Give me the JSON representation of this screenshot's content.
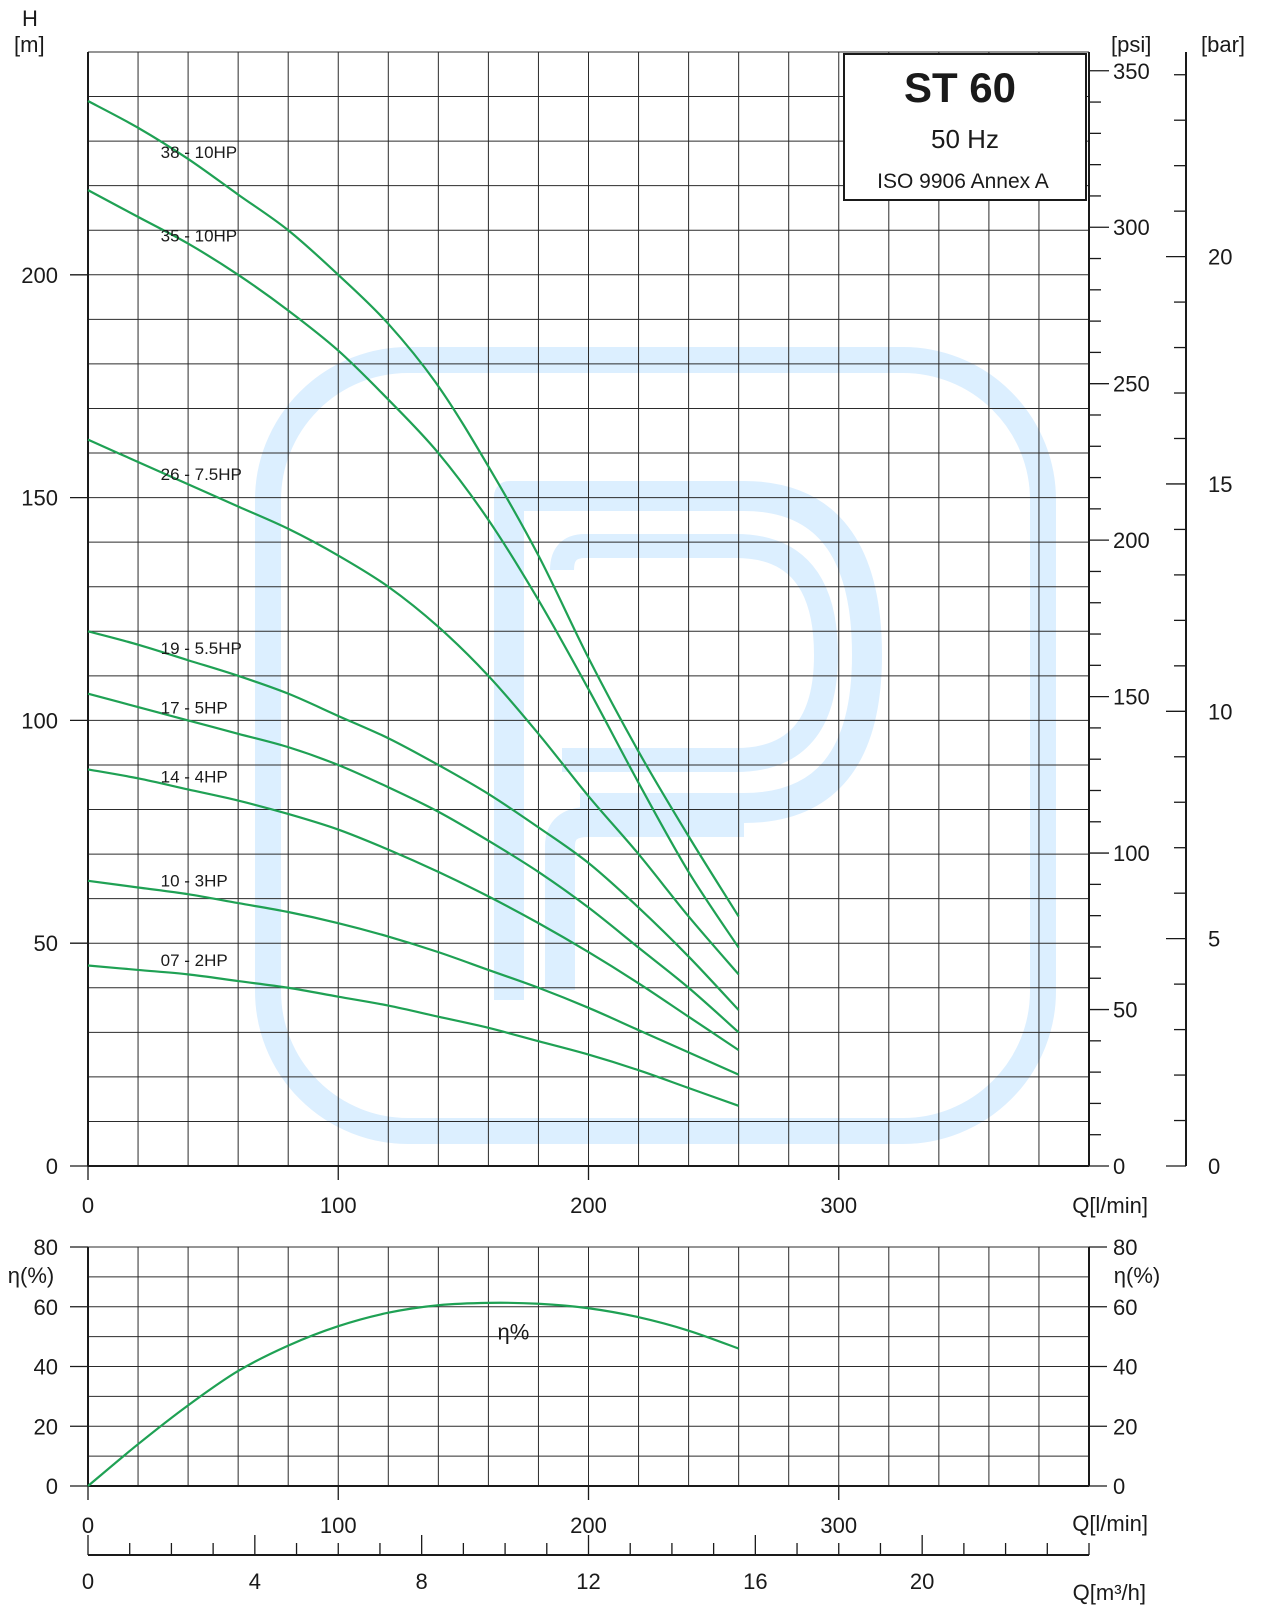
{
  "colors": {
    "curve": "#1fa154",
    "watermark": "#dcefff",
    "ink": "#1a1a1a"
  },
  "watermark_icon": "pedrollo-p-logo-watermark",
  "legend_box": {
    "title": "ST 60",
    "frequency": "50 Hz",
    "standard": "ISO 9906 Annex A"
  },
  "axes": {
    "h_symbol": "H",
    "h_unit": "[m]",
    "psi_unit": "[psi]",
    "bar_unit": "[bar]",
    "eta_unit": "η(%)",
    "q_lmin_label": "Q[l/min]",
    "q_m3h_label": "Q[m³/h]"
  },
  "chart_data": [
    {
      "type": "line",
      "title": "ST 60",
      "xlabel": "Q[l/min]",
      "ylabel": "H [m]",
      "xlim": [
        0,
        400
      ],
      "ylim": [
        0,
        250
      ],
      "x_ticks": [
        0,
        100,
        200,
        300
      ],
      "y_ticks": [
        0,
        50,
        100,
        150,
        200
      ],
      "secondary_axes": [
        {
          "unit": "[psi]",
          "ticks": [
            0,
            50,
            100,
            150,
            200,
            250,
            300,
            350
          ],
          "range": [
            0,
            356
          ]
        },
        {
          "unit": "[bar]",
          "ticks": [
            0,
            5,
            10,
            15,
            20
          ],
          "range": [
            0,
            24.5
          ]
        }
      ],
      "grid": true,
      "series": [
        {
          "name": "38 - 10HP",
          "x": [
            0,
            20,
            40,
            60,
            80,
            100,
            120,
            140,
            160,
            180,
            200,
            220,
            240,
            260
          ],
          "y": [
            239,
            233,
            226,
            218,
            210,
            200,
            189,
            175,
            157,
            137,
            114,
            93,
            74,
            56
          ]
        },
        {
          "name": "35 - 10HP",
          "x": [
            0,
            20,
            40,
            60,
            80,
            100,
            120,
            140,
            160,
            180,
            200,
            220,
            240,
            260
          ],
          "y": [
            219,
            213,
            207,
            200,
            192,
            183,
            172,
            160,
            145,
            127,
            107,
            86,
            66,
            49
          ]
        },
        {
          "name": "26 - 7.5HP",
          "x": [
            0,
            20,
            40,
            60,
            80,
            100,
            120,
            140,
            160,
            180,
            200,
            220,
            240,
            260
          ],
          "y": [
            163,
            158,
            153,
            148,
            143,
            137,
            130,
            121,
            110,
            97,
            83,
            70,
            56,
            43
          ]
        },
        {
          "name": "19 - 5.5HP",
          "x": [
            0,
            20,
            40,
            60,
            80,
            100,
            120,
            140,
            160,
            180,
            200,
            220,
            240,
            260
          ],
          "y": [
            120,
            117,
            113.5,
            110,
            106,
            101,
            96,
            90,
            83.5,
            76,
            68,
            58,
            47,
            35
          ]
        },
        {
          "name": "17 - 5HP",
          "x": [
            0,
            20,
            40,
            60,
            80,
            100,
            120,
            140,
            160,
            180,
            200,
            220,
            240,
            260
          ],
          "y": [
            106,
            103,
            100,
            97,
            94,
            90,
            85,
            79.5,
            73,
            66,
            58,
            49,
            40,
            30
          ]
        },
        {
          "name": "14 - 4HP",
          "x": [
            0,
            20,
            40,
            60,
            80,
            100,
            120,
            140,
            160,
            180,
            200,
            220,
            240,
            260
          ],
          "y": [
            89,
            87,
            84.5,
            82,
            79,
            75.5,
            71,
            66,
            60.5,
            54.5,
            48,
            41,
            33.5,
            26
          ]
        },
        {
          "name": "10 - 3HP",
          "x": [
            0,
            20,
            40,
            60,
            80,
            100,
            120,
            140,
            160,
            180,
            200,
            220,
            240,
            260
          ],
          "y": [
            64,
            62.5,
            61,
            59,
            57,
            54.5,
            51.5,
            48,
            44,
            40,
            35.5,
            30.5,
            25.5,
            20.5
          ]
        },
        {
          "name": "07 - 2HP",
          "x": [
            0,
            20,
            40,
            60,
            80,
            100,
            120,
            140,
            160,
            180,
            200,
            220,
            240,
            260
          ],
          "y": [
            45,
            44,
            43,
            41.5,
            40,
            38,
            36,
            33.5,
            31,
            28,
            25,
            21.5,
            17.5,
            13.5
          ]
        }
      ]
    },
    {
      "type": "line",
      "xlabel": "Q[l/min]",
      "ylabel": "η(%)",
      "xlim": [
        0,
        400
      ],
      "ylim": [
        0,
        80
      ],
      "x_ticks": [
        0,
        100,
        200,
        300
      ],
      "y_ticks": [
        0,
        20,
        40,
        60,
        80
      ],
      "secondary_x_axis": {
        "unit": "Q[m³/h]",
        "ticks": [
          0,
          4,
          8,
          12,
          16,
          20
        ],
        "range": [
          0,
          24
        ]
      },
      "grid": true,
      "series": [
        {
          "name": "η%",
          "x": [
            0,
            20,
            40,
            60,
            80,
            100,
            120,
            140,
            160,
            180,
            200,
            220,
            240,
            260
          ],
          "y": [
            0,
            14,
            27,
            38.5,
            47,
            53.5,
            58,
            60.5,
            61.3,
            61,
            59.5,
            56.5,
            52,
            46
          ]
        }
      ]
    }
  ]
}
